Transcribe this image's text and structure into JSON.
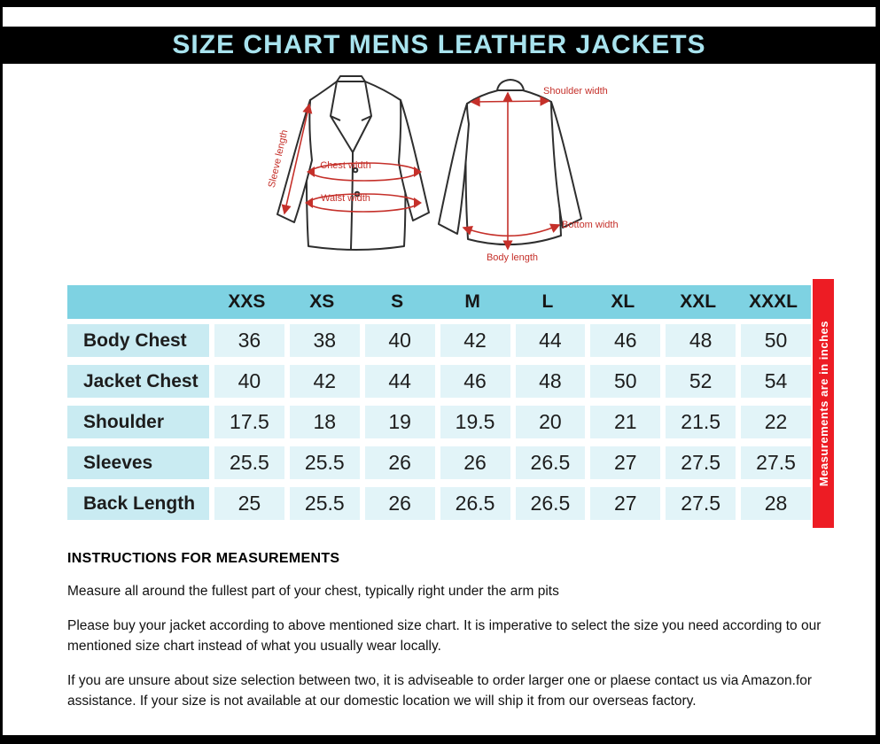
{
  "title_bar": {
    "title": "SIZE CHART MENS LEATHER JACKETS"
  },
  "diagram": {
    "front": {
      "sleeve_length": "Sleeve length",
      "chest_width": "Chest width",
      "waist_width": "Waist width"
    },
    "back": {
      "shoulder_width": "Shoulder width",
      "bottom_width": "Bottom width",
      "body_length": "Body length"
    }
  },
  "chart_data": {
    "type": "table",
    "title": "SIZE CHART MENS LEATHER JACKETS",
    "columns": [
      "XXS",
      "XS",
      "S",
      "M",
      "L",
      "XL",
      "XXL",
      "XXXL"
    ],
    "rows": [
      {
        "label": "Body Chest",
        "values": [
          "36",
          "38",
          "40",
          "42",
          "44",
          "46",
          "48",
          "50"
        ]
      },
      {
        "label": "Jacket Chest",
        "values": [
          "40",
          "42",
          "44",
          "46",
          "48",
          "50",
          "52",
          "54"
        ]
      },
      {
        "label": "Shoulder",
        "values": [
          "17.5",
          "18",
          "19",
          "19.5",
          "20",
          "21",
          "21.5",
          "22"
        ]
      },
      {
        "label": "Sleeves",
        "values": [
          "25.5",
          "25.5",
          "26",
          "26",
          "26.5",
          "27",
          "27.5",
          "27.5"
        ]
      },
      {
        "label": "Back Length",
        "values": [
          "25",
          "25.5",
          "26",
          "26.5",
          "26.5",
          "27",
          "27.5",
          "28"
        ]
      }
    ],
    "unit_note": "Measurements  are in inches"
  },
  "instructions": {
    "heading": "INSTRUCTIONS FOR MEASUREMENTS",
    "paragraphs": [
      "Measure all around the fullest part of your chest, typically right under the arm pits",
      "Please buy your jacket according to above mentioned size chart. It is imperative to select the size you need according to our mentioned size chart instead of what you  usually wear locally.",
      "If you are unsure about size selection between two, it is adviseable to order larger one or plaese contact us via Amazon.for assistance. If your size is not available at our domestic location we will ship it from our overseas factory."
    ]
  },
  "colors": {
    "title_text": "#a8e3ee",
    "header_bg": "#7ed2e2",
    "label_cell_bg": "#c9ebf2",
    "value_cell_bg": "#e2f4f8",
    "red_bar_bg": "#ed1c24",
    "annotation_red": "#c5302a"
  }
}
